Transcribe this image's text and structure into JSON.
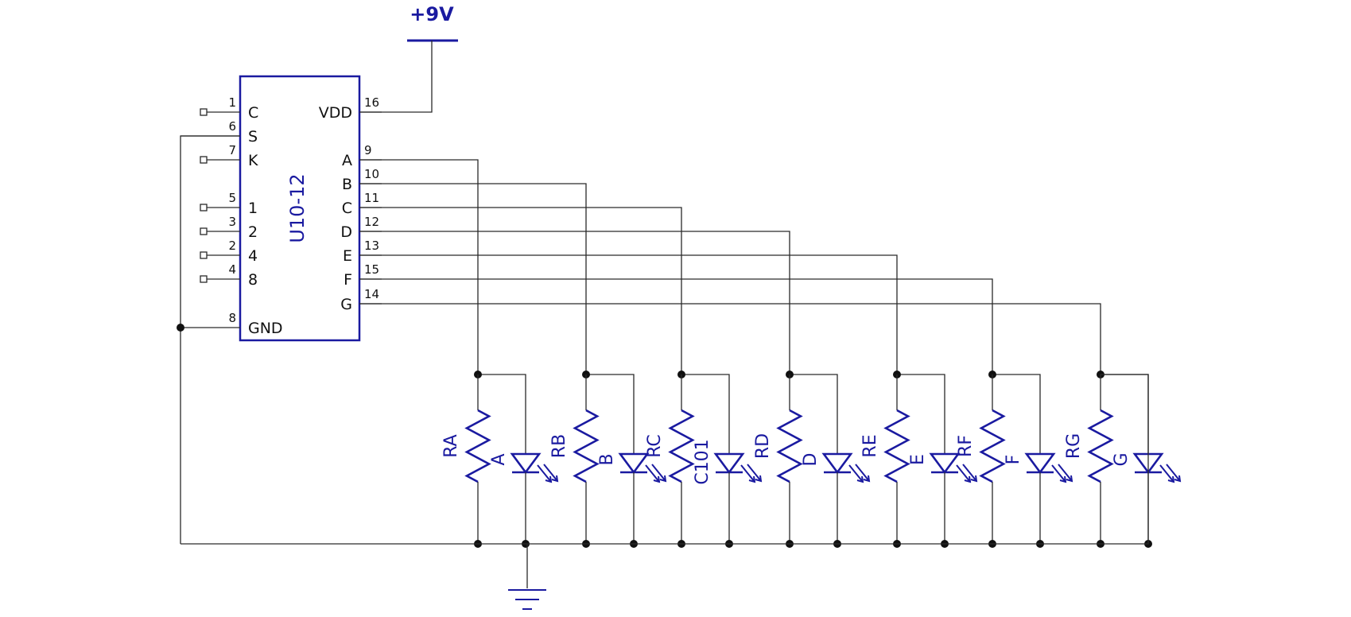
{
  "supply": {
    "label": "+9V"
  },
  "ic": {
    "name": "U10-12",
    "left_pins": [
      {
        "num": "1",
        "name": "C",
        "connected": false
      },
      {
        "num": "6",
        "name": "S",
        "connected": true
      },
      {
        "num": "7",
        "name": "K",
        "connected": false
      },
      {
        "num": "5",
        "name": "1",
        "connected": false
      },
      {
        "num": "3",
        "name": "2",
        "connected": false
      },
      {
        "num": "2",
        "name": "4",
        "connected": false
      },
      {
        "num": "4",
        "name": "8",
        "connected": false
      },
      {
        "num": "8",
        "name": "GND",
        "connected": true
      }
    ],
    "right_pins": [
      {
        "num": "16",
        "name": "VDD"
      },
      {
        "num": "9",
        "name": "A"
      },
      {
        "num": "10",
        "name": "B"
      },
      {
        "num": "11",
        "name": "C"
      },
      {
        "num": "12",
        "name": "D"
      },
      {
        "num": "13",
        "name": "E"
      },
      {
        "num": "15",
        "name": "F"
      },
      {
        "num": "14",
        "name": "G"
      }
    ]
  },
  "segments": [
    {
      "resistor": "RA",
      "led": "A"
    },
    {
      "resistor": "RB",
      "led": "B"
    },
    {
      "resistor": "RC",
      "led": "C101"
    },
    {
      "resistor": "RD",
      "led": "D"
    },
    {
      "resistor": "RE",
      "led": "E"
    },
    {
      "resistor": "RF",
      "led": "F"
    },
    {
      "resistor": "RG",
      "led": "G"
    }
  ],
  "colors": {
    "wire": "#2a2a2a",
    "component": "#1a1aa0",
    "background": "#ffffff"
  }
}
